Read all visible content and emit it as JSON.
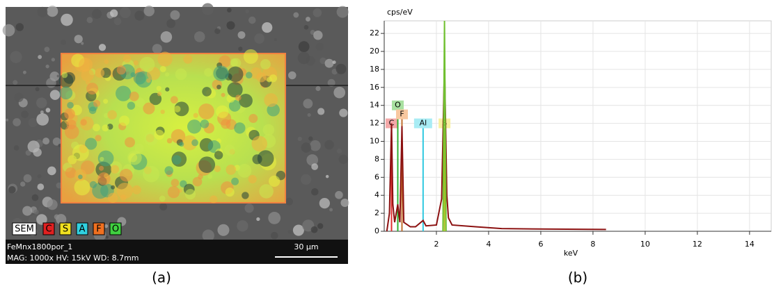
{
  "panel_a": {
    "caption": "(a)",
    "sample": "FeMnx1800por_1",
    "info": "MAG: 1000x  HV: 15kV  WD: 8.7mm",
    "scale": "30 µm",
    "legend": [
      {
        "label": "SEM",
        "color": "#ffffff"
      },
      {
        "label": "C",
        "color": "#e02020"
      },
      {
        "label": "S",
        "color": "#f0e020"
      },
      {
        "label": "A",
        "color": "#30d0e0"
      },
      {
        "label": "F",
        "color": "#f07020"
      },
      {
        "label": "O",
        "color": "#40d040"
      }
    ]
  },
  "chart_data": {
    "type": "line",
    "caption": "(b)",
    "y_label": "cps/eV",
    "x_label": "keV",
    "xlim": [
      0,
      14.83
    ],
    "ylim": [
      0,
      23.4
    ],
    "xticks": [
      2,
      4,
      6,
      8,
      10,
      12,
      14
    ],
    "yticks": [
      0,
      2,
      4,
      6,
      8,
      10,
      12,
      14,
      16,
      18,
      20,
      22
    ],
    "grid": true,
    "spectra": [
      {
        "color": "#8b1010",
        "x": [
          0.1,
          0.2,
          0.28,
          0.33,
          0.4,
          0.52,
          0.6,
          0.68,
          0.75,
          1.0,
          1.2,
          1.49,
          1.6,
          2.0,
          2.2,
          2.31,
          2.4,
          2.46,
          2.6,
          3.5,
          4.5,
          6,
          8.5
        ],
        "values": [
          0,
          2,
          12,
          3,
          1,
          3,
          1,
          11.7,
          1,
          0.5,
          0.5,
          1.2,
          0.6,
          0.7,
          3.6,
          18.7,
          4,
          1.5,
          0.7,
          0.5,
          0.3,
          0.25,
          0.2
        ]
      },
      {
        "color": "#70c030",
        "x": [
          2.25,
          2.31,
          2.37
        ],
        "values": [
          0,
          23.4,
          0
        ]
      }
    ],
    "element_lines": [
      {
        "label": "C",
        "x": 0.28,
        "height": 12,
        "color": "#e03030",
        "box": "#f4a8a8"
      },
      {
        "label": "O",
        "x": 0.52,
        "height": 14,
        "color": "#30b030",
        "box": "#a8e0a0"
      },
      {
        "label": "F",
        "x": 0.68,
        "height": 13,
        "color": "#c07030",
        "box": "#f8c8a0"
      },
      {
        "label": "Al",
        "x": 1.49,
        "height": 12,
        "color": "#30c8e0",
        "box": "#a8ecf4"
      },
      {
        "label": "S",
        "x": 2.31,
        "height": 12,
        "color": "#b0c020",
        "box": "#f8f0a0"
      }
    ]
  }
}
